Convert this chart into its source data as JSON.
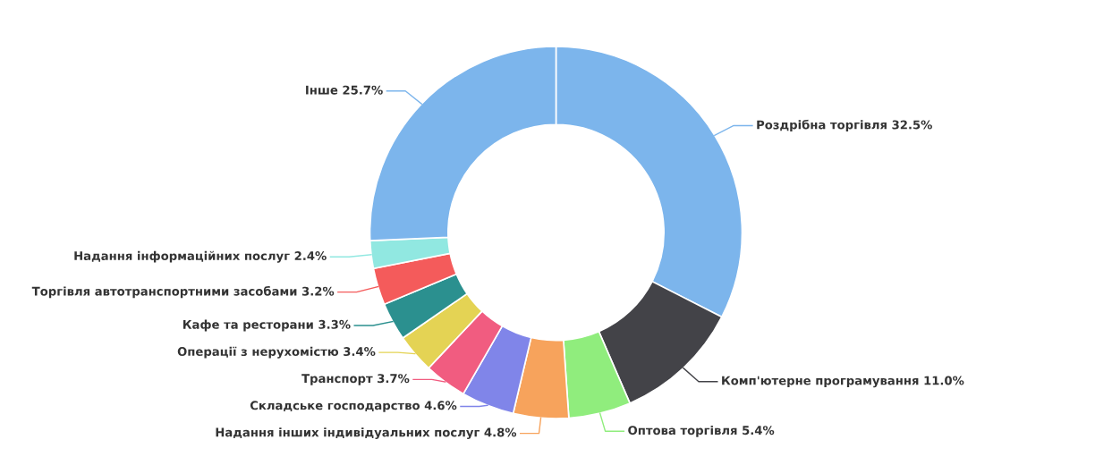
{
  "chart_data": {
    "type": "donut",
    "categories": [
      "Роздрібна торгівля",
      "Комп'ютерне програмування",
      "Оптова торгівля",
      "Надання інших індивідуальних послуг",
      "Складське господарство",
      "Транспорт",
      "Операції з нерухомістю",
      "Кафе та ресторани",
      "Торгівля автотранспортними засобами",
      "Надання інформаційних послуг",
      "Інше"
    ],
    "values": [
      32.5,
      11.0,
      5.4,
      4.8,
      4.6,
      3.7,
      3.4,
      3.3,
      3.2,
      2.4,
      25.7
    ],
    "value_labels": [
      "32.5%",
      "11.0%",
      "5.4%",
      "4.8%",
      "4.6%",
      "3.7%",
      "3.4%",
      "3.3%",
      "3.2%",
      "2.4%",
      "25.7%"
    ],
    "colors": [
      "#7cb5ec",
      "#434348",
      "#90ed7d",
      "#f7a35c",
      "#8085e9",
      "#f15c80",
      "#e4d354",
      "#2b908f",
      "#f45b5b",
      "#91e8e1",
      "#7cb5ec"
    ]
  }
}
